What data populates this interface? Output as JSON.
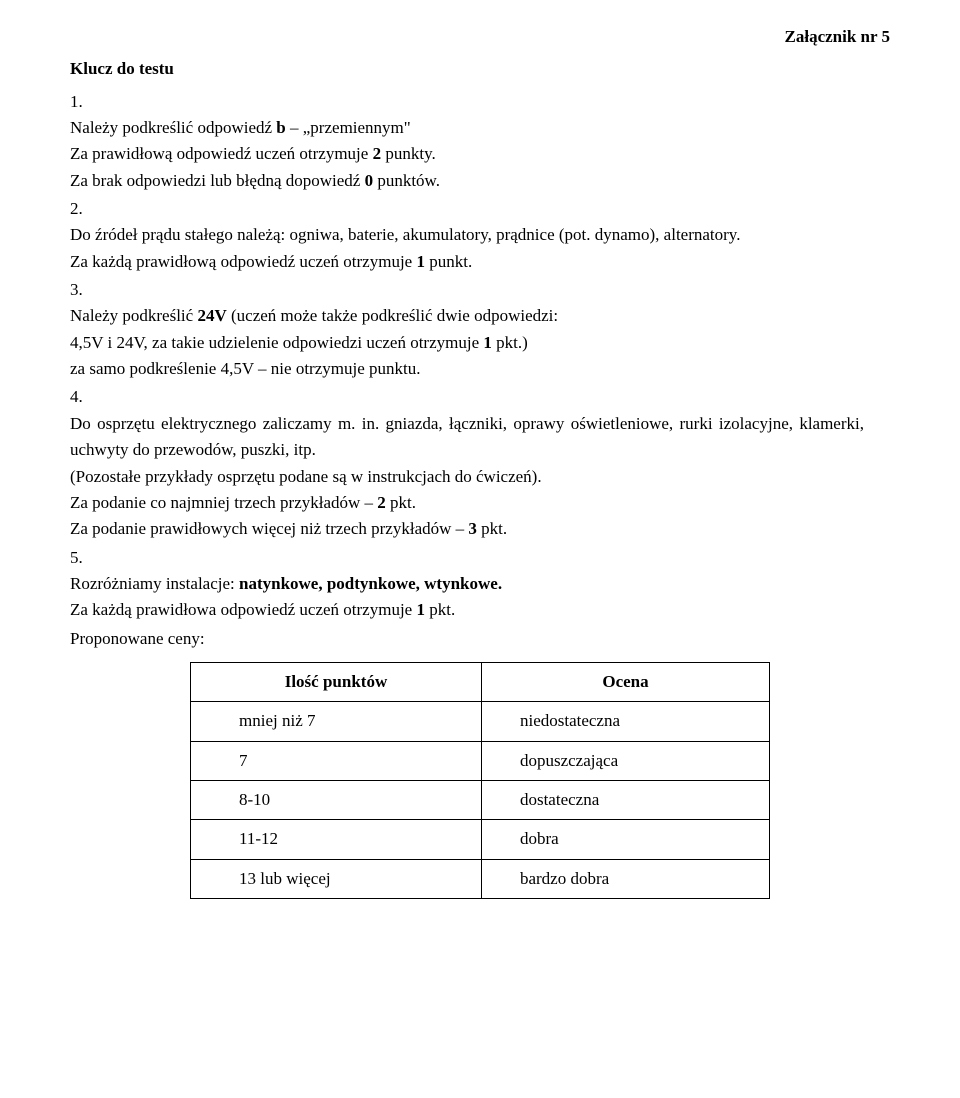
{
  "attachment": "Załącznik nr 5",
  "title": "Klucz do testu",
  "items": {
    "i1_num": "1.",
    "i1_la": "Należy podkreślić odpowiedź ",
    "i1_lb": "b",
    "i1_lc": " – „przemiennym\"",
    "i1_p1a": "Za prawidłową odpowiedź uczeń otrzymuje ",
    "i1_p1b": "2",
    "i1_p1c": " punkty.",
    "i1_p2a": "Za brak odpowiedzi lub błędną dopowiedź   ",
    "i1_p2b": "0",
    "i1_p2c": " punktów.",
    "i2_num": "2.",
    "i2_l": "Do źródeł prądu stałego należą: ogniwa, baterie, akumulatory, prądnice (pot. dynamo), alternatory.",
    "i2_p1a": "Za każdą prawidłową odpowiedź uczeń otrzymuje ",
    "i2_p1b": "1",
    "i2_p1c": " punkt.",
    "i3_num": "3.",
    "i3_la": "Należy podkreślić ",
    "i3_lb": "24V",
    "i3_lc": " (uczeń może także podkreślić dwie odpowiedzi:",
    "i3_p1a": "4,5V i 24V,  za takie udzielenie odpowiedzi uczeń otrzymuje ",
    "i3_p1b": "1",
    "i3_p1c": " pkt.)",
    "i3_p2": "za samo podkreślenie 4,5V – nie otrzymuje punktu.",
    "i4_num": "4.",
    "i4_l": "Do osprzętu elektrycznego zaliczamy m. in. gniazda, łączniki, oprawy oświetleniowe, rurki  izolacyjne, klamerki, uchwyty do przewodów, puszki, itp.",
    "i4_p1": "(Pozostałe przykłady osprzętu  podane są w instrukcjach do ćwiczeń).",
    "i4_p2a": "Za podanie co najmniej trzech przykładów – ",
    "i4_p2b": "2",
    "i4_p2c": " pkt.",
    "i4_p3a": "Za podanie prawidłowych więcej niż trzech przykładów – ",
    "i4_p3b": "3",
    "i4_p3c": " pkt.",
    "i5_num": "5.",
    "i5_la": "Rozróżniamy instalacje: ",
    "i5_lb": "natynkowe, podtynkowe, wtynkowe.",
    "i5_p1a": "Za każdą prawidłowa odpowiedź uczeń otrzymuje ",
    "i5_p1b": "1",
    "i5_p1c": " pkt."
  },
  "proposed_label": "Proponowane ceny:",
  "table": {
    "columns": [
      "Ilość punktów",
      "Ocena"
    ],
    "rows": [
      [
        "mniej niż 7",
        "niedostateczna"
      ],
      [
        "7",
        "dopuszczająca"
      ],
      [
        "8-10",
        "dostateczna"
      ],
      [
        "11-12",
        "dobra"
      ],
      [
        "13 lub więcej",
        "bardzo dobra"
      ]
    ]
  }
}
